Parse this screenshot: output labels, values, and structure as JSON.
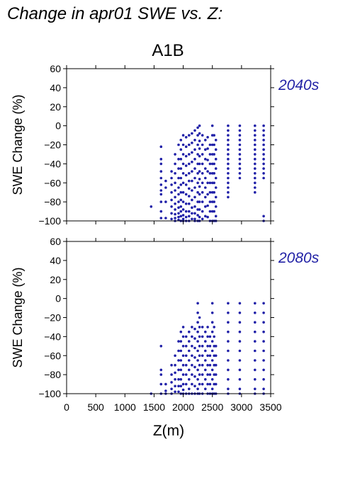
{
  "figure": {
    "title": "Change in apr01 SWE vs. Z:",
    "scenario": "A1B",
    "point_color": "#2020a8",
    "label_color": "#2323a6"
  },
  "chart_data": [
    {
      "type": "scatter",
      "panel_label": "2040s",
      "xlabel": "",
      "ylabel": "SWE Change (%)",
      "xlim": [
        0,
        3500
      ],
      "ylim": [
        -100,
        60
      ],
      "xticks": [
        0,
        500,
        1000,
        1500,
        2000,
        2500,
        3000,
        3500
      ],
      "yticks": [
        60,
        40,
        20,
        0,
        -20,
        -40,
        -60,
        -80,
        -100
      ],
      "columns": [
        {
          "x": 1450,
          "y": [
            -85
          ]
        },
        {
          "x": 1620,
          "y": [
            -22,
            -35,
            -40,
            -48,
            -55,
            -62,
            -68,
            -72,
            -80,
            -90,
            -97
          ]
        },
        {
          "x": 1700,
          "y": [
            -58,
            -65,
            -80,
            -97
          ]
        },
        {
          "x": 1800,
          "y": [
            -48,
            -55,
            -62,
            -70,
            -78,
            -85,
            -92,
            -98
          ]
        },
        {
          "x": 1860,
          "y": [
            -30,
            -40,
            -50,
            -60,
            -68,
            -75,
            -82,
            -88,
            -93,
            -97,
            -100
          ]
        },
        {
          "x": 1920,
          "y": [
            -20,
            -35,
            -45,
            -55,
            -65,
            -72,
            -80,
            -86,
            -92,
            -96,
            -99
          ]
        },
        {
          "x": 1960,
          "y": [
            -15,
            -25,
            -35,
            -45,
            -55,
            -62,
            -70,
            -78,
            -85,
            -90,
            -95,
            -100
          ]
        },
        {
          "x": 2000,
          "y": [
            -10,
            -20,
            -30,
            -40,
            -50,
            -60,
            -70,
            -80,
            -88,
            -94,
            -98,
            -100
          ]
        },
        {
          "x": 2050,
          "y": [
            -12,
            -22,
            -32,
            -42,
            -52,
            -62,
            -72,
            -82,
            -90,
            -96,
            -100
          ]
        },
        {
          "x": 2100,
          "y": [
            -10,
            -20,
            -30,
            -40,
            -50,
            -58,
            -66,
            -74,
            -82,
            -90,
            -95,
            -100
          ]
        },
        {
          "x": 2150,
          "y": [
            -8,
            -18,
            -28,
            -38,
            -48,
            -58,
            -68,
            -78,
            -86,
            -92,
            -98
          ]
        },
        {
          "x": 2200,
          "y": [
            -5,
            -15,
            -25,
            -35,
            -45,
            -55,
            -65,
            -75,
            -85,
            -92,
            -98,
            -100
          ]
        },
        {
          "x": 2250,
          "y": [
            -2,
            -10,
            -20,
            -30,
            -40,
            -50,
            -60,
            -70,
            -80,
            -88,
            -94,
            -100
          ]
        },
        {
          "x": 2280,
          "y": [
            0,
            -8,
            -16,
            -24,
            -32,
            -40,
            -48,
            -56,
            -64,
            -72,
            -80,
            -88,
            -96,
            -100
          ]
        },
        {
          "x": 2330,
          "y": [
            -10,
            -20,
            -30,
            -40,
            -50,
            -60,
            -70,
            -80,
            -90,
            -98
          ]
        },
        {
          "x": 2380,
          "y": [
            -15,
            -25,
            -35,
            -45,
            -55,
            -65,
            -75,
            -85,
            -95
          ]
        },
        {
          "x": 2420,
          "y": [
            -12,
            -24,
            -36,
            -48,
            -60,
            -72,
            -84,
            -96
          ]
        },
        {
          "x": 2460,
          "y": [
            -20,
            -30,
            -40,
            -50,
            -60,
            -70,
            -80,
            -90,
            -100
          ]
        },
        {
          "x": 2500,
          "y": [
            0,
            -10,
            -20,
            -30,
            -40,
            -50,
            -60,
            -70,
            -80,
            -90,
            -100
          ]
        },
        {
          "x": 2530,
          "y": [
            -10,
            -20,
            -30,
            -40,
            -50,
            -60,
            -70,
            -80,
            -90,
            -100
          ]
        },
        {
          "x": 2560,
          "y": [
            -15,
            -25,
            -35,
            -45,
            -55,
            -65,
            -75,
            -85,
            -95,
            -100
          ]
        },
        {
          "x": 2770,
          "y": [
            0,
            -5,
            -10,
            -15,
            -20,
            -25,
            -30,
            -35,
            -40,
            -45,
            -50,
            -55,
            -60,
            -65,
            -70,
            -75
          ]
        },
        {
          "x": 2970,
          "y": [
            0,
            -5,
            -10,
            -15,
            -20,
            -25,
            -30,
            -35,
            -40,
            -45,
            -50,
            -55
          ]
        },
        {
          "x": 3230,
          "y": [
            0,
            -5,
            -10,
            -15,
            -20,
            -25,
            -30,
            -35,
            -40,
            -45,
            -50,
            -55,
            -60,
            -65,
            -70
          ]
        },
        {
          "x": 3380,
          "y": [
            0,
            -5,
            -10,
            -15,
            -20,
            -25,
            -30,
            -35,
            -40,
            -45,
            -50,
            -55,
            -95,
            -100
          ]
        }
      ]
    },
    {
      "type": "scatter",
      "panel_label": "2080s",
      "xlabel": "Z(m)",
      "ylabel": "SWE Change (%)",
      "xlim": [
        0,
        3500
      ],
      "ylim": [
        -100,
        60
      ],
      "xticks": [
        0,
        500,
        1000,
        1500,
        2000,
        2500,
        3000,
        3500
      ],
      "yticks": [
        60,
        40,
        20,
        0,
        -20,
        -40,
        -60,
        -80,
        -100
      ],
      "columns": [
        {
          "x": 1450,
          "y": [
            -100
          ]
        },
        {
          "x": 1620,
          "y": [
            -50,
            -75,
            -80,
            -90,
            -100
          ]
        },
        {
          "x": 1700,
          "y": [
            -90,
            -97,
            -100
          ]
        },
        {
          "x": 1800,
          "y": [
            -70,
            -80,
            -88,
            -95,
            -100
          ]
        },
        {
          "x": 1860,
          "y": [
            -60,
            -70,
            -78,
            -85,
            -92,
            -98
          ]
        },
        {
          "x": 1920,
          "y": [
            -45,
            -55,
            -65,
            -75,
            -85,
            -92,
            -98
          ]
        },
        {
          "x": 1960,
          "y": [
            -35,
            -45,
            -55,
            -65,
            -75,
            -85,
            -92,
            -100
          ]
        },
        {
          "x": 2000,
          "y": [
            -30,
            -40,
            -50,
            -60,
            -70,
            -80,
            -90,
            -96,
            -100
          ]
        },
        {
          "x": 2050,
          "y": [
            -40,
            -50,
            -60,
            -70,
            -80,
            -90,
            -100
          ]
        },
        {
          "x": 2100,
          "y": [
            -35,
            -45,
            -55,
            -65,
            -75,
            -85,
            -95,
            -100
          ]
        },
        {
          "x": 2150,
          "y": [
            -30,
            -40,
            -50,
            -60,
            -70,
            -80,
            -90,
            -100
          ]
        },
        {
          "x": 2200,
          "y": [
            -32,
            -42,
            -52,
            -62,
            -72,
            -82,
            -92,
            -100
          ]
        },
        {
          "x": 2250,
          "y": [
            -5,
            -15,
            -25,
            -35,
            -45,
            -55,
            -65,
            -75,
            -85,
            -95,
            -100
          ]
        },
        {
          "x": 2280,
          "y": [
            -20,
            -30,
            -40,
            -50,
            -60,
            -70,
            -80,
            -90,
            -100
          ]
        },
        {
          "x": 2330,
          "y": [
            -30,
            -40,
            -50,
            -60,
            -70,
            -80,
            -90,
            -100
          ]
        },
        {
          "x": 2380,
          "y": [
            -35,
            -45,
            -55,
            -65,
            -75,
            -85,
            -95
          ]
        },
        {
          "x": 2420,
          "y": [
            -30,
            -40,
            -50,
            -60,
            -70,
            -80,
            -90,
            -100
          ]
        },
        {
          "x": 2460,
          "y": [
            -40,
            -50,
            -60,
            -70,
            -80,
            -90,
            -100
          ]
        },
        {
          "x": 2500,
          "y": [
            -5,
            -15,
            -25,
            -35,
            -45,
            -55,
            -65,
            -75,
            -85,
            -95,
            -100
          ]
        },
        {
          "x": 2530,
          "y": [
            -30,
            -40,
            -50,
            -60,
            -70,
            -80,
            -90,
            -100
          ]
        },
        {
          "x": 2560,
          "y": [
            -50,
            -60,
            -70,
            -80,
            -90,
            -100
          ]
        },
        {
          "x": 2770,
          "y": [
            -5,
            -15,
            -25,
            -35,
            -45,
            -55,
            -65,
            -75,
            -85,
            -95,
            -100
          ]
        },
        {
          "x": 2970,
          "y": [
            -5,
            -15,
            -25,
            -35,
            -45,
            -55,
            -65,
            -75,
            -85,
            -95,
            -100
          ]
        },
        {
          "x": 3230,
          "y": [
            -5,
            -15,
            -25,
            -35,
            -45,
            -55,
            -65,
            -75,
            -85,
            -95,
            -100
          ]
        },
        {
          "x": 3380,
          "y": [
            -5,
            -15,
            -25,
            -35,
            -45,
            -55,
            -65,
            -75,
            -85,
            -95,
            -100
          ]
        }
      ]
    }
  ]
}
